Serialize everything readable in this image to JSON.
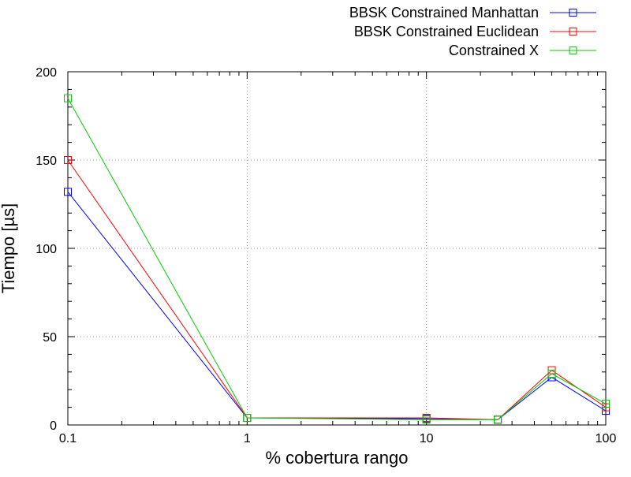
{
  "chart_data": {
    "type": "line",
    "xlabel": "% cobertura rango",
    "ylabel": "Tiempo [µs]",
    "x_scale": "log",
    "xlim": [
      0.1,
      100
    ],
    "ylim": [
      0,
      200
    ],
    "x_ticks": [
      "0.1",
      "1",
      "10",
      "100"
    ],
    "y_ticks": [
      "0",
      "50",
      "100",
      "150",
      "200"
    ],
    "grid": true,
    "legend_position": "top-right",
    "series": [
      {
        "name": "BBSK Constrained Manhattan",
        "color": "#0000ff",
        "marker": "square",
        "x": [
          0.1,
          1,
          10,
          25,
          50,
          100
        ],
        "y": [
          132,
          4,
          3.5,
          3,
          27,
          8
        ]
      },
      {
        "name": "BBSK Constrained Euclidean",
        "color": "#ff0000",
        "marker": "square",
        "x": [
          0.1,
          1,
          10,
          25,
          50,
          100
        ],
        "y": [
          150,
          4,
          4,
          3,
          31,
          10
        ]
      },
      {
        "name": "Constrained X",
        "color": "#00cc00",
        "marker": "square",
        "x": [
          0.1,
          1,
          10,
          25,
          50,
          100
        ],
        "y": [
          185,
          4,
          3,
          3,
          29,
          12
        ]
      }
    ]
  }
}
